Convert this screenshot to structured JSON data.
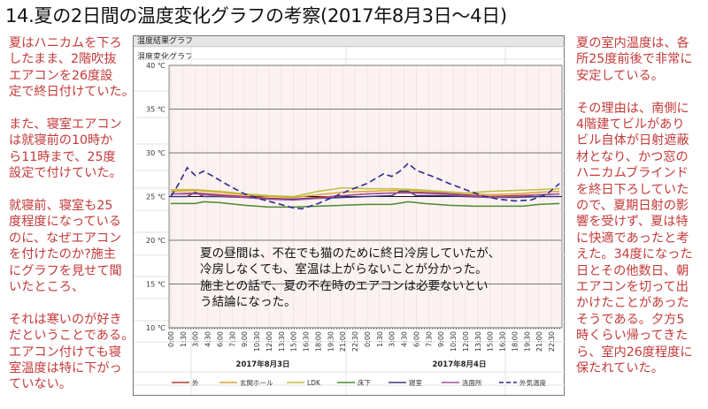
{
  "title": "14.夏の2日間の温度変化グラフの考察(2017年8月3日～4日)",
  "left_text": [
    [
      "夏はハニカムを下ろ",
      "したまま、2階吹抜",
      "エアコンを26度設",
      "定で終日付けていた。"
    ],
    [
      "また、寝室エアコン",
      "は就寝前の10時か",
      "ら11時まで、25度",
      "設定で付けていた。"
    ],
    [
      "就寝前、寝室も25",
      "度程度になっている",
      "のに、なぜエアコン",
      "を付けたのか?施主",
      "にグラフを見せて聞",
      "いたところ、"
    ],
    [
      "それは寒いのが好き",
      "だということである。",
      "エアコン付けても寝",
      "室温度は特に下がっ",
      "ていない。"
    ]
  ],
  "right_text": [
    [
      "夏の室内温度は、各",
      "所25度前後で非常に",
      "安定している。"
    ],
    [
      "その理由は、南側に",
      "4階建てビルがあり",
      "ビル自体が日射遮蔽",
      "材となり、かつ窓の",
      "ハニカムブラインド",
      "を終日下ろしていた",
      "ので、夏期日射の影",
      "響を受けず、夏は特",
      "に快適であったと考",
      "えた。34度になった",
      "日とその他数日、朝",
      "エアコンを切って出",
      "かけたことがあった",
      "そうである。夕方5",
      "時くらい帰ってきた",
      "ら、室内26度程度に",
      "保たれていた。"
    ]
  ],
  "annotation": [
    "夏の昼間は、不在でも猫のために終日冷房していたが、",
    "冷房しなくても、室温は上がらないことが分かった。",
    "施主との話で、夏の不在時のエアコンは必要ないとい",
    "う結論になった。"
  ],
  "chart_panel": {
    "header": "温度結果グラフ",
    "subtitle": "温度変化グラフ"
  },
  "chart_data": {
    "type": "line",
    "title": "温度変化グラフ",
    "ylim": [
      10,
      40
    ],
    "yticks": [
      "40 ℃",
      "35 ℃",
      "30 ℃",
      "25 ℃",
      "20 ℃",
      "15 ℃",
      "10 ℃"
    ],
    "ytick_values": [
      40,
      35,
      30,
      25,
      20,
      15,
      10
    ],
    "xticks": [
      "0:00",
      "1:30",
      "3:00",
      "4:30",
      "6:00",
      "7:30",
      "9:00",
      "10:30",
      "12:00",
      "13:30",
      "15:00",
      "16:30",
      "18:00",
      "19:30",
      "21:00",
      "22:30",
      "0:00",
      "1:30",
      "3:00",
      "4:30",
      "6:00",
      "7:30",
      "9:00",
      "10:30",
      "12:00",
      "13:30",
      "15:00",
      "16:30",
      "18:00",
      "19:30",
      "21:00",
      "22:30"
    ],
    "date_labels": [
      "2017年8月3日",
      "2017年8月4日"
    ],
    "grid": true,
    "legend_position": "bottom",
    "series": [
      {
        "name": "外",
        "color": "#b03a2e",
        "dashed": false,
        "points": [
          [
            0,
            25.3
          ],
          [
            3,
            25.4
          ],
          [
            6,
            25.2
          ],
          [
            9,
            25.0
          ],
          [
            12,
            24.8
          ],
          [
            15,
            24.7
          ],
          [
            18,
            24.9
          ],
          [
            21,
            25.1
          ],
          [
            24,
            25.3
          ],
          [
            27,
            25.4
          ],
          [
            30,
            25.5
          ],
          [
            33,
            25.4
          ],
          [
            36,
            25.2
          ],
          [
            39,
            25.0
          ],
          [
            42,
            25.1
          ],
          [
            45,
            25.2
          ],
          [
            47.5,
            25.3
          ]
        ]
      },
      {
        "name": "玄関ホール",
        "color": "#e0a030",
        "dashed": false,
        "points": [
          [
            0,
            25.6
          ],
          [
            3,
            25.7
          ],
          [
            6,
            25.5
          ],
          [
            9,
            25.2
          ],
          [
            12,
            25.0
          ],
          [
            15,
            24.9
          ],
          [
            18,
            25.2
          ],
          [
            21,
            25.5
          ],
          [
            24,
            25.6
          ],
          [
            27,
            25.7
          ],
          [
            30,
            25.7
          ],
          [
            33,
            25.6
          ],
          [
            36,
            25.4
          ],
          [
            39,
            25.2
          ],
          [
            42,
            25.3
          ],
          [
            45,
            25.5
          ],
          [
            47.5,
            25.6
          ]
        ]
      },
      {
        "name": "LDK",
        "color": "#b8c040",
        "dashed": false,
        "points": [
          [
            0,
            25.8
          ],
          [
            3,
            25.8
          ],
          [
            6,
            25.6
          ],
          [
            9,
            25.3
          ],
          [
            12,
            25.1
          ],
          [
            15,
            25.0
          ],
          [
            18,
            25.6
          ],
          [
            21,
            26.0
          ],
          [
            24,
            25.9
          ],
          [
            27,
            25.9
          ],
          [
            30,
            25.8
          ],
          [
            33,
            25.6
          ],
          [
            36,
            25.4
          ],
          [
            39,
            25.6
          ],
          [
            42,
            25.7
          ],
          [
            45,
            25.8
          ],
          [
            47.5,
            25.9
          ]
        ]
      },
      {
        "name": "床下",
        "color": "#4a8a30",
        "dashed": false,
        "points": [
          [
            0,
            24.2
          ],
          [
            3,
            24.2
          ],
          [
            4,
            24.4
          ],
          [
            6,
            24.3
          ],
          [
            9,
            24.0
          ],
          [
            12,
            23.8
          ],
          [
            15,
            23.8
          ],
          [
            18,
            23.9
          ],
          [
            21,
            24.0
          ],
          [
            24,
            24.1
          ],
          [
            27,
            24.1
          ],
          [
            29,
            24.4
          ],
          [
            31,
            24.2
          ],
          [
            34,
            24.0
          ],
          [
            37,
            23.9
          ],
          [
            40,
            23.9
          ],
          [
            43,
            23.9
          ],
          [
            45,
            24.1
          ],
          [
            47.5,
            24.2
          ]
        ]
      },
      {
        "name": "寝室",
        "color": "#3a3a7a",
        "dashed": false,
        "points": [
          [
            0,
            25.0
          ],
          [
            2,
            25.0
          ],
          [
            3,
            25.5
          ],
          [
            4,
            25.0
          ],
          [
            6,
            25.0
          ],
          [
            9,
            24.9
          ],
          [
            12,
            24.7
          ],
          [
            15,
            24.7
          ],
          [
            18,
            24.8
          ],
          [
            21,
            24.9
          ],
          [
            24,
            25.0
          ],
          [
            27,
            25.1
          ],
          [
            28,
            25.6
          ],
          [
            29,
            25.6
          ],
          [
            30,
            25.1
          ],
          [
            33,
            25.1
          ],
          [
            36,
            25.0
          ],
          [
            39,
            24.9
          ],
          [
            42,
            24.9
          ],
          [
            45,
            25.0
          ],
          [
            47.5,
            25.0
          ]
        ]
      },
      {
        "name": "洗面所",
        "color": "#a050a0",
        "dashed": false,
        "points": [
          [
            0,
            25.3
          ],
          [
            3,
            25.3
          ],
          [
            6,
            25.1
          ],
          [
            9,
            24.9
          ],
          [
            12,
            24.7
          ],
          [
            15,
            24.6
          ],
          [
            18,
            24.8
          ],
          [
            21,
            25.1
          ],
          [
            24,
            25.3
          ],
          [
            27,
            25.4
          ],
          [
            30,
            25.4
          ],
          [
            33,
            25.3
          ],
          [
            36,
            25.1
          ],
          [
            39,
            24.9
          ],
          [
            42,
            25.0
          ],
          [
            45,
            25.2
          ],
          [
            47.5,
            25.3
          ]
        ]
      },
      {
        "name": "外気温度",
        "color": "#2a2a90",
        "dashed": true,
        "points": [
          [
            0,
            25.0
          ],
          [
            1,
            26.5
          ],
          [
            2,
            28.3
          ],
          [
            3,
            27.4
          ],
          [
            4,
            27.9
          ],
          [
            5,
            27.4
          ],
          [
            7,
            26.3
          ],
          [
            9,
            25.3
          ],
          [
            11,
            24.7
          ],
          [
            13,
            24.2
          ],
          [
            15,
            23.7
          ],
          [
            16,
            23.6
          ],
          [
            18,
            24.2
          ],
          [
            20,
            25.0
          ],
          [
            22,
            25.8
          ],
          [
            24,
            26.5
          ],
          [
            26,
            27.6
          ],
          [
            27,
            27.3
          ],
          [
            28,
            27.9
          ],
          [
            29,
            28.8
          ],
          [
            30,
            28.0
          ],
          [
            32,
            27.3
          ],
          [
            34,
            26.5
          ],
          [
            36,
            25.8
          ],
          [
            38,
            25.1
          ],
          [
            40,
            24.7
          ],
          [
            42,
            24.5
          ],
          [
            44,
            24.6
          ],
          [
            46,
            25.3
          ],
          [
            47.5,
            26.5
          ]
        ]
      }
    ]
  }
}
